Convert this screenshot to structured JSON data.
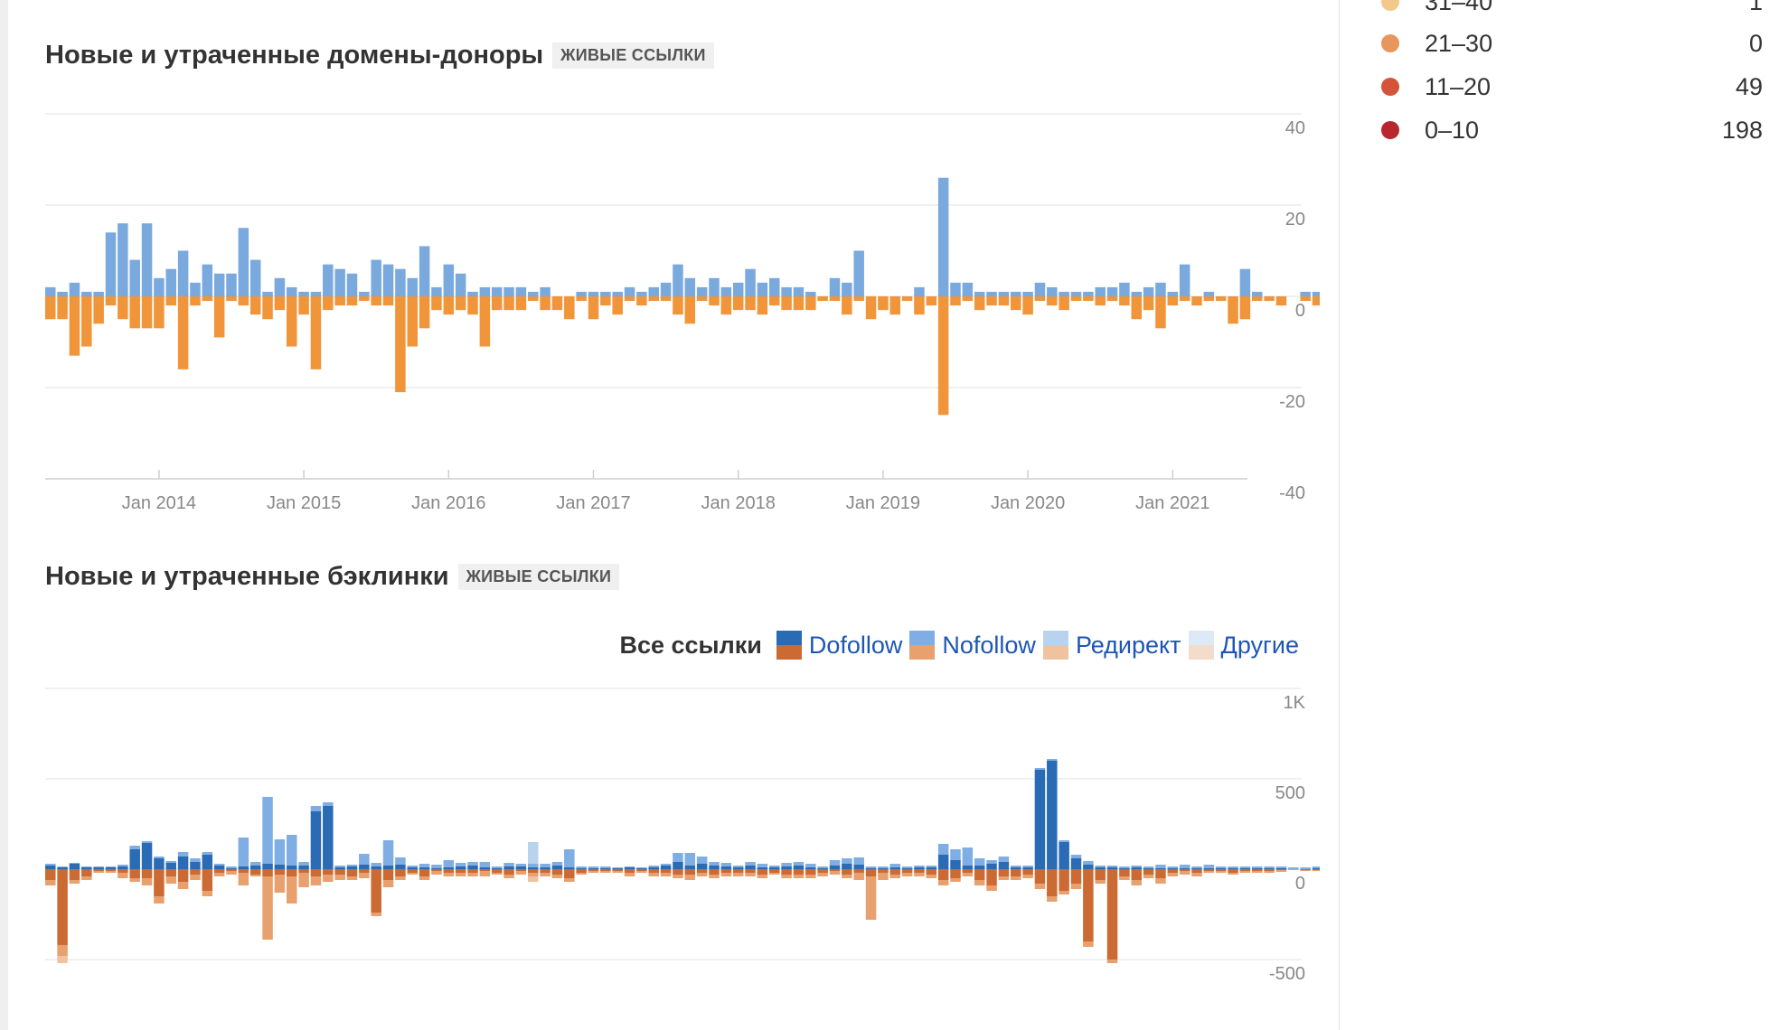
{
  "ref_table": {
    "rows": [
      {
        "label": "31–40",
        "value": "1",
        "color": "#f2c98a"
      },
      {
        "label": "21–30",
        "value": "0",
        "color": "#e8975c"
      },
      {
        "label": "11–20",
        "value": "49",
        "color": "#d4543a"
      },
      {
        "label": "0–10",
        "value": "198",
        "color": "#b8262e"
      }
    ]
  },
  "domains_section": {
    "title": "Новые и утраченные домены-доноры",
    "badge": "ЖИВЫЕ ССЫЛКИ"
  },
  "backlinks_section": {
    "title": "Новые и утраченные бэклинки",
    "badge": "ЖИВЫЕ ССЫЛКИ",
    "legend": {
      "all_label": "Все ссылки",
      "items": [
        {
          "label": "Dofollow",
          "new_color": "#2a6bb5",
          "lost_color": "#cc6a33"
        },
        {
          "label": "Nofollow",
          "new_color": "#7eaee3",
          "lost_color": "#e8a06e"
        },
        {
          "label": "Редирект",
          "new_color": "#b9d3ee",
          "lost_color": "#efc39f"
        },
        {
          "label": "Другие",
          "new_color": "#dde9f6",
          "lost_color": "#f4dccb"
        }
      ]
    }
  },
  "chart_data": [
    {
      "type": "bar",
      "title": "Новые и утраченные домены-доноры",
      "x_start": "2013-04",
      "x_tick_labels": [
        "Jan 2014",
        "Jan 2015",
        "Jan 2016",
        "Jan 2017",
        "Jan 2018",
        "Jan 2019",
        "Jan 2020",
        "Jan 2021"
      ],
      "ylim": [
        -40,
        40
      ],
      "y_ticks": [
        40,
        20,
        0,
        -20,
        -40
      ],
      "colors": {
        "new": "#7aa9de",
        "lost": "#f0953a"
      },
      "series": [
        {
          "name": "new",
          "values": [
            2,
            1,
            3,
            1,
            1,
            14,
            16,
            8,
            16,
            4,
            6,
            10,
            3,
            7,
            5,
            5,
            15,
            8,
            1,
            4,
            2,
            1,
            1,
            7,
            6,
            5,
            1,
            8,
            7,
            6,
            4,
            11,
            2,
            7,
            5,
            1,
            2,
            2,
            2,
            2,
            1,
            2,
            0,
            0,
            1,
            1,
            1,
            1,
            2,
            1,
            2,
            3,
            7,
            4,
            2,
            4,
            2,
            3,
            6,
            3,
            4,
            2,
            2,
            1,
            0,
            4,
            3,
            10,
            0,
            0,
            0,
            0,
            2,
            0,
            26,
            3,
            3,
            1,
            1,
            1,
            1,
            1,
            3,
            2,
            1,
            1,
            1,
            2,
            2,
            3,
            1,
            2,
            3,
            1,
            7,
            0,
            1,
            0,
            0,
            6,
            1,
            0,
            0,
            0,
            1,
            1
          ]
        },
        {
          "name": "lost",
          "values": [
            -5,
            -5,
            -13,
            -11,
            -6,
            -2,
            -5,
            -7,
            -7,
            -7,
            -2,
            -16,
            -2,
            -1,
            -9,
            -1,
            -2,
            -4,
            -5,
            -3,
            -11,
            -4,
            -16,
            -3,
            -2,
            -2,
            -1,
            -2,
            -2,
            -21,
            -11,
            -7,
            -3,
            -4,
            -3,
            -4,
            -11,
            -3,
            -3,
            -3,
            -1,
            -3,
            -3,
            -5,
            -1,
            -5,
            -2,
            -4,
            -1,
            -2,
            -1,
            -1,
            -4,
            -6,
            -1,
            -2,
            -4,
            -3,
            -3,
            -4,
            -2,
            -3,
            -3,
            -3,
            -1,
            -1,
            -4,
            -1,
            -5,
            -3,
            -4,
            -1,
            -4,
            -2,
            -26,
            -2,
            -1,
            -3,
            -2,
            -2,
            -3,
            -4,
            -1,
            -2,
            -3,
            -1,
            -1,
            -2,
            -1,
            -2,
            -5,
            -3,
            -7,
            -2,
            -1,
            -2,
            -1,
            -1,
            -6,
            -5,
            -1,
            -1,
            -2,
            0,
            -1,
            -2
          ]
        }
      ]
    },
    {
      "type": "bar",
      "title": "Новые и утраченные бэклинки",
      "x_start": "2013-04",
      "ylim": [
        -500,
        1000
      ],
      "y_ticks": [
        "1K",
        "500",
        "0",
        "-500"
      ],
      "series": [
        {
          "name": "Dofollow",
          "new_values": [
            20,
            10,
            30,
            10,
            10,
            10,
            15,
            110,
            145,
            60,
            35,
            70,
            40,
            80,
            20,
            5,
            15,
            20,
            30,
            25,
            20,
            20,
            320,
            350,
            10,
            15,
            25,
            15,
            20,
            25,
            10,
            10,
            5,
            10,
            15,
            20,
            10,
            5,
            15,
            15,
            10,
            10,
            20,
            10,
            5,
            5,
            5,
            5,
            10,
            5,
            10,
            20,
            40,
            20,
            30,
            20,
            15,
            10,
            20,
            10,
            10,
            15,
            20,
            10,
            5,
            20,
            30,
            25,
            5,
            5,
            10,
            5,
            10,
            10,
            80,
            50,
            20,
            20,
            30,
            40,
            10,
            10,
            550,
            600,
            150,
            60,
            25,
            10,
            10,
            5,
            10,
            5,
            5,
            5,
            5,
            5,
            5,
            5,
            5,
            5,
            5,
            5,
            5,
            0,
            0,
            5
          ],
          "lost_values": [
            -60,
            -420,
            -60,
            -40,
            -10,
            -10,
            -20,
            -50,
            -50,
            -150,
            -40,
            -70,
            -30,
            -120,
            -20,
            -10,
            -20,
            -30,
            -40,
            -30,
            -40,
            -20,
            -40,
            -30,
            -30,
            -40,
            -20,
            -240,
            -60,
            -40,
            -20,
            -40,
            -10,
            -20,
            -20,
            -20,
            -10,
            -20,
            -30,
            -10,
            -20,
            -20,
            -30,
            -50,
            -20,
            -10,
            -10,
            -10,
            -20,
            -10,
            -20,
            -20,
            -30,
            -30,
            -20,
            -30,
            -20,
            -20,
            -20,
            -30,
            -20,
            -30,
            -30,
            -30,
            -20,
            -10,
            -30,
            -20,
            -40,
            -20,
            -30,
            -20,
            -20,
            -30,
            -60,
            -50,
            -20,
            -60,
            -90,
            -40,
            -40,
            -30,
            -80,
            -150,
            -120,
            -80,
            -400,
            -60,
            -500,
            -40,
            -60,
            -30,
            -50,
            -20,
            -10,
            -20,
            -10,
            -10,
            -20,
            -10,
            -10,
            -10,
            -5,
            0,
            -5,
            -5
          ]
        },
        {
          "name": "Nofollow",
          "new_values": [
            10,
            5,
            5,
            5,
            5,
            5,
            10,
            20,
            10,
            10,
            10,
            25,
            20,
            15,
            10,
            10,
            160,
            20,
            370,
            140,
            170,
            20,
            30,
            20,
            10,
            10,
            60,
            20,
            140,
            40,
            10,
            20,
            20,
            40,
            20,
            20,
            30,
            10,
            20,
            15,
            20,
            20,
            20,
            100,
            10,
            10,
            10,
            5,
            5,
            5,
            10,
            10,
            50,
            70,
            40,
            20,
            20,
            10,
            20,
            20,
            10,
            20,
            20,
            20,
            10,
            30,
            30,
            40,
            10,
            10,
            20,
            10,
            10,
            10,
            60,
            60,
            100,
            40,
            20,
            30,
            10,
            10,
            10,
            10,
            10,
            20,
            20,
            10,
            10,
            10,
            10,
            10,
            20,
            10,
            20,
            10,
            20,
            10,
            10,
            10,
            10,
            10,
            10,
            10,
            10,
            10
          ],
          "lost_values": [
            -30,
            -60,
            -20,
            -20,
            -10,
            -10,
            -30,
            -20,
            -40,
            -40,
            -40,
            -40,
            -30,
            -30,
            -20,
            -20,
            -70,
            -10,
            -350,
            -100,
            -150,
            -80,
            -50,
            -40,
            -30,
            -20,
            -30,
            -20,
            -40,
            -20,
            -10,
            -20,
            -20,
            -20,
            -20,
            -20,
            -30,
            -10,
            -20,
            -20,
            -20,
            -20,
            -20,
            -20,
            -10,
            -10,
            -10,
            -10,
            -20,
            -10,
            -20,
            -20,
            -20,
            -30,
            -20,
            -20,
            -20,
            -20,
            -20,
            -20,
            -10,
            -20,
            -20,
            -20,
            -20,
            -20,
            -20,
            -40,
            -240,
            -40,
            -20,
            -20,
            -20,
            -20,
            -30,
            -20,
            -20,
            -30,
            -30,
            -20,
            -20,
            -20,
            -30,
            -30,
            -20,
            -30,
            -30,
            -20,
            -20,
            -20,
            -30,
            -20,
            -30,
            -20,
            -20,
            -20,
            -10,
            -10,
            -10,
            -10,
            -10,
            -10,
            -10,
            -5,
            -5,
            -5
          ]
        },
        {
          "name": "Редирект",
          "new_values": [
            0,
            0,
            0,
            0,
            0,
            0,
            0,
            0,
            0,
            0,
            0,
            0,
            0,
            0,
            0,
            0,
            0,
            0,
            0,
            0,
            0,
            0,
            0,
            0,
            0,
            0,
            0,
            0,
            0,
            0,
            0,
            0,
            0,
            0,
            0,
            0,
            0,
            0,
            0,
            0,
            120,
            0,
            0,
            0,
            0,
            0,
            0,
            0,
            0,
            0,
            0,
            0,
            0,
            0,
            0,
            0,
            0,
            0,
            0,
            0,
            0,
            0,
            0,
            0,
            0,
            0,
            0,
            0,
            0,
            0,
            0,
            0,
            0,
            0,
            0,
            0,
            0,
            0,
            0,
            0,
            0,
            0,
            0,
            0,
            0,
            0,
            0,
            0,
            0,
            0,
            0,
            0,
            0,
            0,
            0,
            0,
            0,
            0,
            0,
            0,
            0,
            0,
            0,
            0,
            0,
            0
          ],
          "lost_values": [
            0,
            -40,
            0,
            0,
            0,
            0,
            0,
            0,
            0,
            0,
            0,
            0,
            0,
            0,
            0,
            0,
            0,
            0,
            0,
            0,
            0,
            0,
            0,
            0,
            0,
            0,
            0,
            0,
            0,
            0,
            0,
            0,
            0,
            0,
            0,
            0,
            0,
            0,
            0,
            0,
            -30,
            0,
            0,
            0,
            0,
            0,
            0,
            0,
            0,
            0,
            0,
            0,
            0,
            0,
            0,
            0,
            0,
            0,
            0,
            0,
            0,
            0,
            0,
            0,
            0,
            0,
            0,
            0,
            0,
            0,
            0,
            0,
            0,
            0,
            0,
            0,
            0,
            0,
            0,
            0,
            0,
            0,
            0,
            0,
            0,
            0,
            0,
            0,
            0,
            0,
            0,
            0,
            0,
            0,
            0,
            0,
            0,
            0,
            0,
            0,
            0,
            0,
            0,
            0,
            0,
            0
          ]
        },
        {
          "name": "Другие",
          "new_values": [],
          "lost_values": []
        }
      ]
    }
  ]
}
